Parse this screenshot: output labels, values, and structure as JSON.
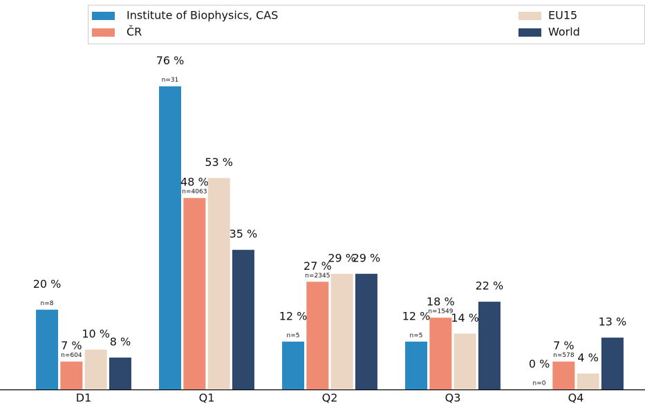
{
  "chart_data": {
    "type": "bar",
    "categories": [
      "D1",
      "Q1",
      "Q2",
      "Q3",
      "Q4"
    ],
    "series": [
      {
        "name": "Institute of Biophysics, CAS",
        "color": "#2a89c0",
        "values": [
          20,
          76,
          12,
          12,
          0
        ],
        "value_labels": [
          "20 %",
          "76 %",
          "12 %",
          "12 %",
          "0 %"
        ],
        "sample_labels": [
          "n=8",
          "n=31",
          "n=5",
          "n=5",
          "n=0"
        ]
      },
      {
        "name": "ČR",
        "color": "#ee8b72",
        "values": [
          7,
          48,
          27,
          18,
          7
        ],
        "value_labels": [
          "7 %",
          "48 %",
          "27 %",
          "18 %",
          "7 %"
        ],
        "sample_labels": [
          "n=604",
          "n=4063",
          "n=2345",
          "n=1549",
          "n=578"
        ]
      },
      {
        "name": "EU15",
        "color": "#ead6c2",
        "values": [
          10,
          53,
          29,
          14,
          4
        ],
        "value_labels": [
          "10 %",
          "53 %",
          "29 %",
          "14 %",
          "4 %"
        ]
      },
      {
        "name": "World",
        "color": "#2e486d",
        "values": [
          8,
          35,
          29,
          22,
          13
        ],
        "value_labels": [
          "8 %",
          "35 %",
          "29 %",
          "22 %",
          "13 %"
        ]
      }
    ],
    "ylim": [
      0,
      90
    ],
    "legend": "top"
  }
}
